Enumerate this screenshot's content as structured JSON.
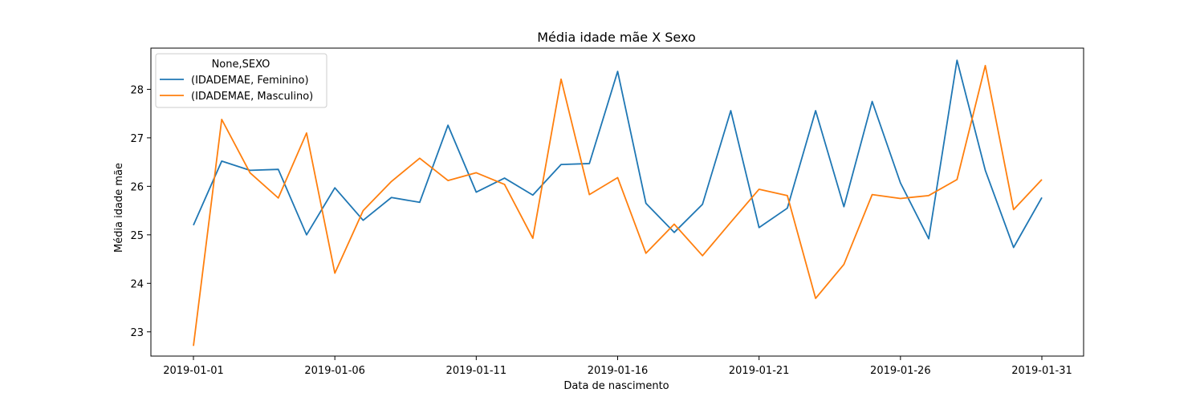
{
  "chart_data": {
    "type": "line",
    "title": "Média idade mãe X Sexo",
    "xlabel": "Data de nascimento",
    "ylabel": "Média idade mãe",
    "x": [
      "2019-01-01",
      "2019-01-02",
      "2019-01-03",
      "2019-01-04",
      "2019-01-05",
      "2019-01-06",
      "2019-01-07",
      "2019-01-08",
      "2019-01-09",
      "2019-01-10",
      "2019-01-11",
      "2019-01-12",
      "2019-01-13",
      "2019-01-14",
      "2019-01-15",
      "2019-01-16",
      "2019-01-17",
      "2019-01-18",
      "2019-01-19",
      "2019-01-20",
      "2019-01-21",
      "2019-01-22",
      "2019-01-23",
      "2019-01-24",
      "2019-01-25",
      "2019-01-26",
      "2019-01-27",
      "2019-01-28",
      "2019-01-29",
      "2019-01-30",
      "2019-01-31"
    ],
    "x_ticks": [
      "2019-01-01",
      "2019-01-06",
      "2019-01-11",
      "2019-01-16",
      "2019-01-21",
      "2019-01-26",
      "2019-01-31"
    ],
    "y_ticks": [
      23,
      24,
      25,
      26,
      27,
      28
    ],
    "ylim": [
      22.5,
      28.85
    ],
    "grid": false,
    "legend": {
      "title": "None,SEXO",
      "placement": "top-left"
    },
    "series": [
      {
        "name": "(IDADEMAE, Feminino)",
        "color": "#1f77b4",
        "values": [
          25.2,
          26.52,
          26.33,
          26.35,
          25.0,
          25.97,
          25.3,
          25.77,
          25.67,
          27.26,
          25.88,
          26.17,
          25.82,
          26.45,
          26.47,
          28.37,
          25.65,
          25.05,
          25.63,
          27.56,
          25.15,
          25.55,
          27.56,
          25.58,
          27.75,
          26.07,
          24.92,
          28.6,
          26.33,
          24.74,
          25.77
        ]
      },
      {
        "name": "(IDADEMAE, Masculino)",
        "color": "#ff7f0e",
        "values": [
          22.71,
          27.38,
          26.28,
          25.76,
          27.1,
          24.21,
          25.5,
          26.1,
          26.58,
          26.12,
          26.28,
          26.04,
          24.93,
          28.21,
          25.83,
          26.18,
          24.62,
          25.22,
          24.57,
          25.26,
          25.94,
          25.81,
          23.69,
          24.39,
          25.83,
          25.75,
          25.81,
          26.14,
          28.49,
          25.52,
          26.14
        ]
      }
    ]
  }
}
